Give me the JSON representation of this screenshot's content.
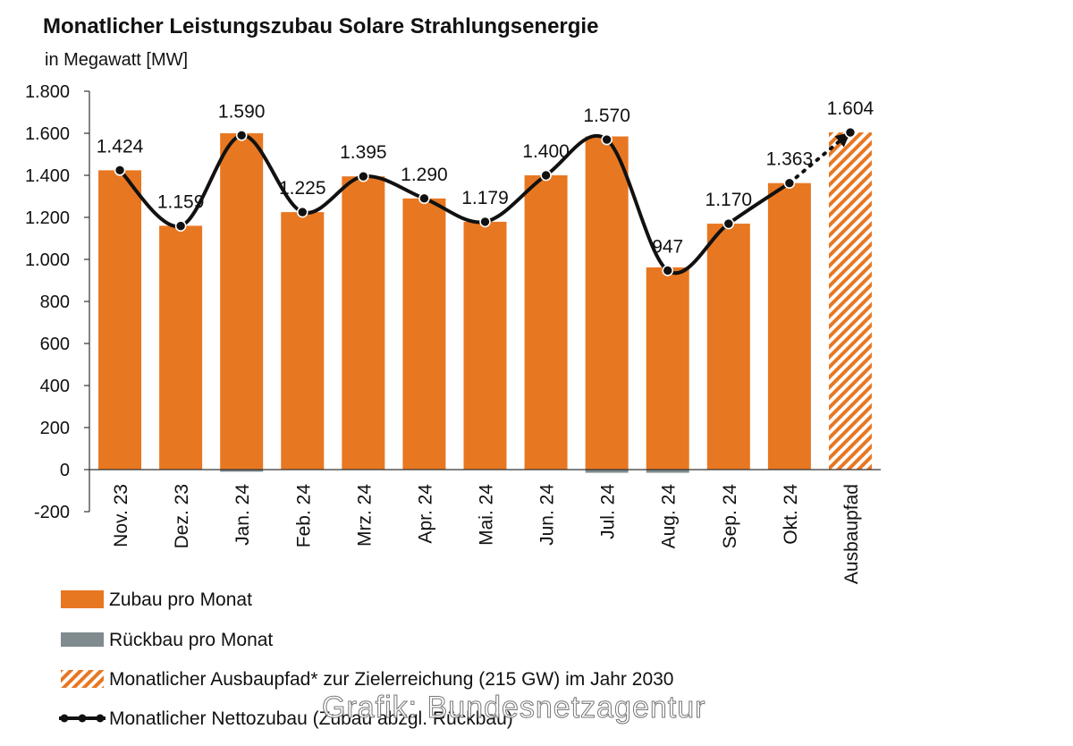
{
  "chart_data": {
    "type": "bar",
    "title": "Monatlicher Leistungszubau Solare Strahlungsenergie",
    "subtitle": "in Megawatt [MW]",
    "categories": [
      "Nov. 23",
      "Dez. 23",
      "Jan. 24",
      "Feb. 24",
      "Mrz. 24",
      "Apr. 24",
      "Mai. 24",
      "Jun. 24",
      "Jul. 24",
      "Aug. 24",
      "Sep. 24",
      "Okt. 24",
      "Ausbaupfad"
    ],
    "ylim": [
      -200,
      1800
    ],
    "yticks": [
      -200,
      0,
      200,
      400,
      600,
      800,
      1000,
      1200,
      1400,
      1600,
      1800
    ],
    "ytick_labels": [
      "-200",
      "0",
      "200",
      "400",
      "600",
      "800",
      "1.000",
      "1.200",
      "1.400",
      "1.600",
      "1.800"
    ],
    "series": [
      {
        "name": "Zubau pro Monat",
        "type": "bar",
        "values": [
          1424,
          1160,
          1600,
          1225,
          1395,
          1290,
          1179,
          1400,
          1585,
          962,
          1170,
          1363,
          null
        ]
      },
      {
        "name": "Rückbau pro Monat",
        "type": "bar",
        "values": [
          0,
          0,
          -10,
          0,
          0,
          0,
          0,
          0,
          -15,
          -15,
          0,
          0,
          null
        ]
      },
      {
        "name": "Monatlicher Ausbaupfad* zur Zielerreichung (215 GW) im Jahr 2030",
        "type": "bar-hatched",
        "values": [
          null,
          null,
          null,
          null,
          null,
          null,
          null,
          null,
          null,
          null,
          null,
          null,
          1604
        ]
      },
      {
        "name": "Monatlicher Nettozubau (Zubau abzgl. Rückbau)",
        "type": "line",
        "values": [
          1424,
          1159,
          1590,
          1225,
          1395,
          1290,
          1179,
          1400,
          1570,
          947,
          1170,
          1363,
          1604
        ]
      }
    ],
    "data_labels": [
      "1.424",
      "1.159",
      "1.590",
      "1.225",
      "1.395",
      "1.290",
      "1.179",
      "1.400",
      "1.570",
      "947",
      "1.170",
      "1.363",
      "1.604"
    ],
    "legend": [
      {
        "label": "Zubau pro Monat",
        "kind": "bar"
      },
      {
        "label": "Rückbau pro Monat",
        "kind": "bar-grey"
      },
      {
        "label": "Monatlicher Ausbaupfad* zur Zielerreichung (215 GW) im Jahr 2030",
        "kind": "hatched"
      },
      {
        "label": "Monatlicher Nettozubau (Zubau abzgl. Rückbau)",
        "kind": "line"
      }
    ],
    "legend_position": "bottom-left",
    "grid": false,
    "colors": {
      "bar": "#E87722",
      "rueckbau": "#7F8B8F",
      "line": "#111111"
    }
  },
  "watermark": "Grafik: Bundesnetzagentur"
}
